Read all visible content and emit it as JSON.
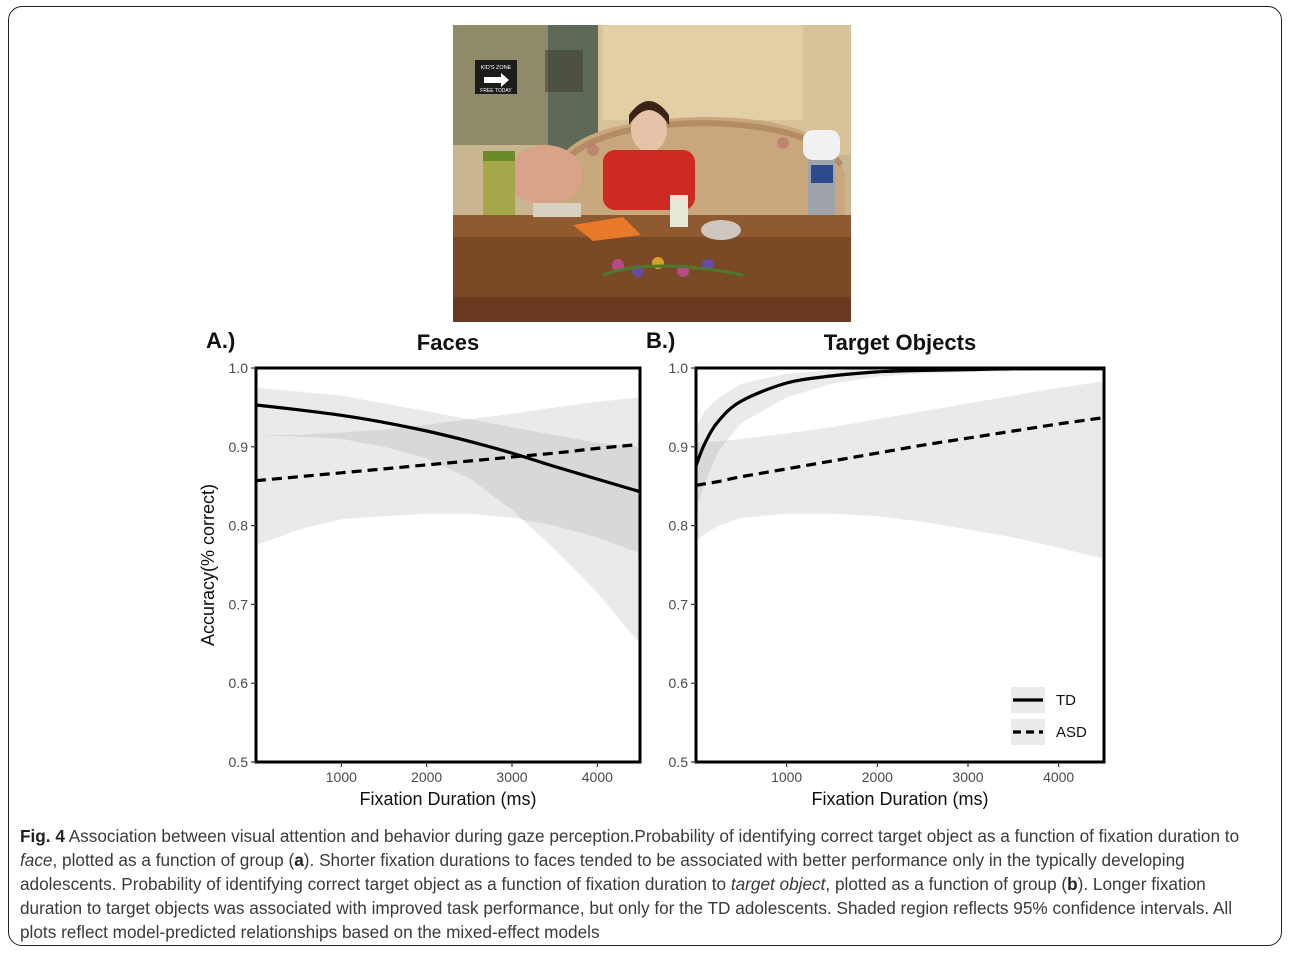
{
  "photo_sign": {
    "line1": "KID'S ZONE",
    "line2": "FREE TODAY"
  },
  "panel_a": {
    "tag": "A.)",
    "title": "Faces"
  },
  "panel_b": {
    "tag": "B.)",
    "title": "Target Objects"
  },
  "axes": {
    "ylabel": "Accuracy(% correct)",
    "xlabel": "Fixation Duration (ms)",
    "yticks": [
      "0.5",
      "0.6",
      "0.7",
      "0.8",
      "0.9",
      "1.0"
    ],
    "xticks": [
      "1000",
      "2000",
      "3000",
      "4000"
    ]
  },
  "legend": {
    "td": "TD",
    "asd": "ASD"
  },
  "caption": {
    "fig_label": "Fig. 4",
    "part1": " Association between visual attention and behavior during gaze perception.Probability of identifying correct target object as a function of fixation duration to ",
    "face_word": "face",
    "part2": ", plotted as a function of group (",
    "a_letter": "a",
    "part3": "). Shorter fixation durations to faces tended to be associated with better performance only in the typically developing adolescents. Probability of identifying correct target object as a function of fixation duration to ",
    "target_word": "target object",
    "part4": ", plotted as a function of group (",
    "b_letter": "b",
    "part5": "). Longer fixation duration to target objects was associated with improved task performance, but only for the TD adolescents. Shaded region reflects 95% confidence intervals. All plots reflect model-predicted relationships based on the mixed-effect models"
  },
  "chart_data": [
    {
      "type": "line",
      "title": "Faces",
      "xlabel": "Fixation Duration (ms)",
      "ylabel": "Accuracy(% correct)",
      "xlim": [
        0,
        4500
      ],
      "ylim": [
        0.5,
        1.0
      ],
      "grid": false,
      "x": [
        0,
        500,
        1000,
        1500,
        2000,
        2500,
        3000,
        3500,
        4000,
        4500
      ],
      "series": [
        {
          "name": "TD",
          "style": "solid",
          "values": [
            0.953,
            0.947,
            0.94,
            0.931,
            0.92,
            0.907,
            0.892,
            0.875,
            0.859,
            0.843
          ],
          "ci_lower": [
            0.915,
            0.913,
            0.91,
            0.9,
            0.885,
            0.86,
            0.82,
            0.77,
            0.715,
            0.65
          ],
          "ci_upper": [
            0.975,
            0.97,
            0.965,
            0.955,
            0.945,
            0.935,
            0.925,
            0.915,
            0.905,
            0.9
          ]
        },
        {
          "name": "ASD",
          "style": "dashed",
          "values": [
            0.857,
            0.862,
            0.867,
            0.872,
            0.877,
            0.882,
            0.887,
            0.892,
            0.898,
            0.903
          ],
          "ci_lower": [
            0.775,
            0.795,
            0.808,
            0.812,
            0.815,
            0.815,
            0.81,
            0.8,
            0.785,
            0.765
          ],
          "ci_upper": [
            0.915,
            0.915,
            0.918,
            0.922,
            0.928,
            0.935,
            0.942,
            0.95,
            0.957,
            0.963
          ]
        }
      ]
    },
    {
      "type": "line",
      "title": "Target Objects",
      "xlabel": "Fixation Duration (ms)",
      "ylabel": "",
      "xlim": [
        0,
        4500
      ],
      "ylim": [
        0.5,
        1.0
      ],
      "grid": false,
      "legend_position": "bottom-right",
      "x": [
        0,
        100,
        250,
        500,
        1000,
        1500,
        2000,
        2500,
        3000,
        3500,
        4000,
        4500
      ],
      "series": [
        {
          "name": "TD",
          "style": "solid",
          "values": [
            0.876,
            0.905,
            0.933,
            0.958,
            0.981,
            0.99,
            0.995,
            0.997,
            0.998,
            0.999,
            0.999,
            0.999
          ],
          "ci_lower": [
            0.82,
            0.855,
            0.895,
            0.93,
            0.963,
            0.98,
            0.989,
            0.993,
            0.995,
            0.996,
            0.997,
            0.997
          ],
          "ci_upper": [
            0.925,
            0.945,
            0.962,
            0.98,
            0.993,
            0.997,
            0.999,
            1.0,
            1.0,
            1.0,
            1.0,
            1.0
          ]
        },
        {
          "name": "ASD",
          "style": "dashed",
          "values": [
            0.851,
            0.853,
            0.856,
            0.862,
            0.872,
            0.882,
            0.892,
            0.902,
            0.911,
            0.92,
            0.929,
            0.937
          ],
          "ci_lower": [
            0.78,
            0.79,
            0.8,
            0.81,
            0.815,
            0.815,
            0.812,
            0.805,
            0.795,
            0.785,
            0.772,
            0.758
          ],
          "ci_upper": [
            0.905,
            0.906,
            0.907,
            0.91,
            0.917,
            0.925,
            0.935,
            0.945,
            0.955,
            0.965,
            0.975,
            0.983
          ]
        }
      ]
    }
  ]
}
